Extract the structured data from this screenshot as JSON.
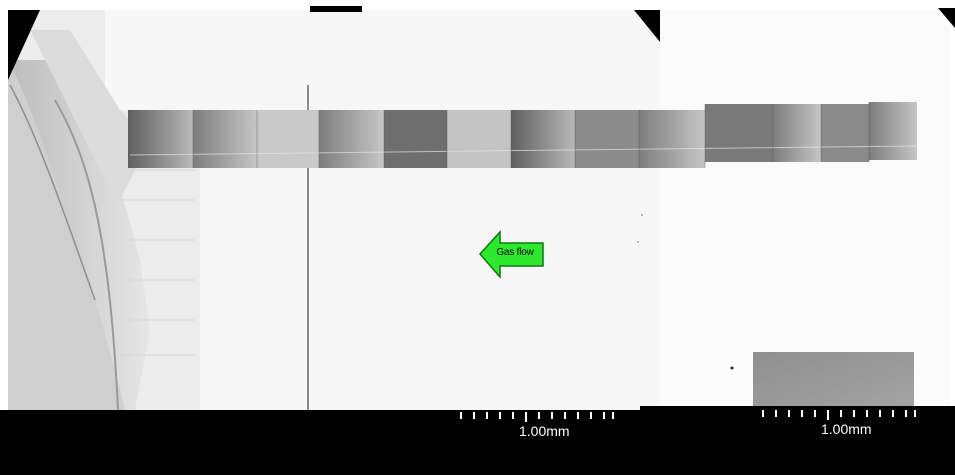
{
  "image": {
    "arrow_label": "Gas flow",
    "arrow_color": "#2ee82e",
    "scale_bars": [
      {
        "label": "1.00mm"
      },
      {
        "label": "1.00mm"
      }
    ],
    "colors": {
      "background": "#ffffff",
      "bottom_bar": "#000000",
      "strip_dark": "#6c6c6c",
      "strip_light": "#bdbdbd",
      "left_specimen": "#c8c8c8",
      "sample_block": "#8a8a8a"
    }
  }
}
